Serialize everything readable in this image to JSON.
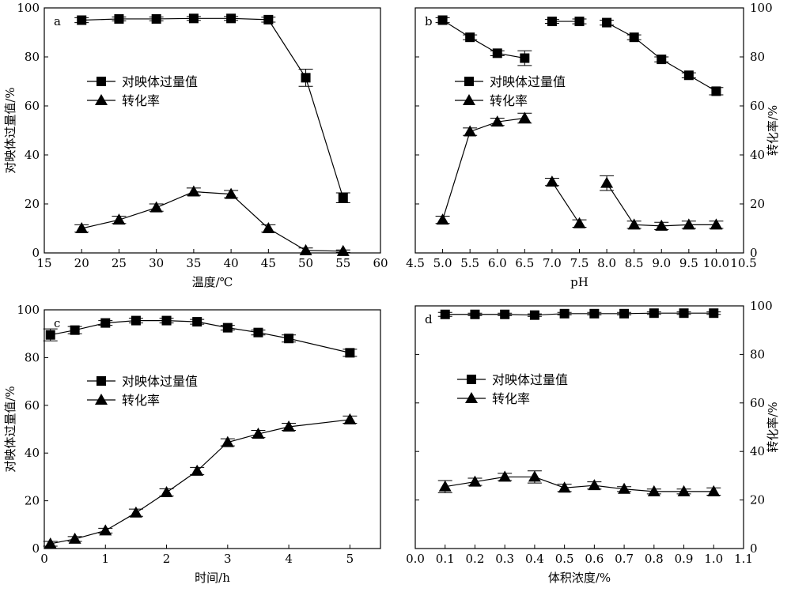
{
  "chart_data": [
    {
      "type": "line",
      "panel_label": "a",
      "xlabel": "温度/℃",
      "ylabel_left": "对映体过量值/%",
      "ylabel_right": "",
      "xlim": [
        15,
        60
      ],
      "ylim": [
        0,
        100
      ],
      "xticks": [
        15,
        20,
        25,
        30,
        35,
        40,
        45,
        50,
        55,
        60
      ],
      "yticks": [
        0,
        20,
        40,
        60,
        80,
        100
      ],
      "show_right_ticks": false,
      "legend": {
        "position": "upper-left",
        "entries": [
          "对映体过量值",
          "转化率"
        ]
      },
      "series": [
        {
          "name": "对映体过量值",
          "marker": "square",
          "segments": [
            [
              {
                "x": 20,
                "y": 95.0,
                "err": 1.0
              },
              {
                "x": 25,
                "y": 95.5,
                "err": 0.8
              },
              {
                "x": 30,
                "y": 95.5,
                "err": 0.8
              },
              {
                "x": 35,
                "y": 95.7,
                "err": 0.8
              },
              {
                "x": 40,
                "y": 95.7,
                "err": 0.8
              },
              {
                "x": 45,
                "y": 95.2,
                "err": 1.0
              },
              {
                "x": 50,
                "y": 71.5,
                "err": 3.5
              },
              {
                "x": 55,
                "y": 22.5,
                "err": 2.0
              }
            ]
          ]
        },
        {
          "name": "转化率",
          "marker": "triangle",
          "segments": [
            [
              {
                "x": 20,
                "y": 10.0,
                "err": 1.5
              },
              {
                "x": 25,
                "y": 13.5,
                "err": 1.5
              },
              {
                "x": 30,
                "y": 18.5,
                "err": 1.5
              },
              {
                "x": 35,
                "y": 25.0,
                "err": 1.5
              },
              {
                "x": 40,
                "y": 24.0,
                "err": 1.5
              },
              {
                "x": 45,
                "y": 10.0,
                "err": 1.5
              },
              {
                "x": 50,
                "y": 1.0,
                "err": 1.0
              },
              {
                "x": 55,
                "y": 0.7,
                "err": 0.5
              }
            ]
          ]
        }
      ]
    },
    {
      "type": "line",
      "panel_label": "b",
      "xlabel": "pH",
      "ylabel_left": "",
      "ylabel_right": "转化率/%",
      "xlim": [
        4.5,
        10.5
      ],
      "ylim": [
        0,
        100
      ],
      "xticks": [
        4.5,
        5.0,
        5.5,
        6.0,
        6.5,
        7.0,
        7.5,
        8.0,
        8.5,
        9.0,
        9.5,
        10.0,
        10.5
      ],
      "yticks": [
        0,
        20,
        40,
        60,
        80,
        100
      ],
      "show_right_ticks": true,
      "legend": {
        "position": "upper-center",
        "entries": [
          "对映体过量值",
          "转化率"
        ]
      },
      "series": [
        {
          "name": "对映体过量值",
          "marker": "square",
          "segments": [
            [
              {
                "x": 5.0,
                "y": 95.0,
                "err": 1.0
              },
              {
                "x": 5.5,
                "y": 88.0,
                "err": 1.0
              },
              {
                "x": 6.0,
                "y": 81.5,
                "err": 1.0
              },
              {
                "x": 6.5,
                "y": 79.5,
                "err": 3.0
              }
            ],
            [
              {
                "x": 7.0,
                "y": 94.5,
                "err": 0.8
              },
              {
                "x": 7.5,
                "y": 94.5,
                "err": 1.0
              }
            ],
            [
              {
                "x": 8.0,
                "y": 94.0,
                "err": 1.0
              },
              {
                "x": 8.5,
                "y": 88.0,
                "err": 1.0
              },
              {
                "x": 9.0,
                "y": 79.0,
                "err": 1.0
              },
              {
                "x": 9.5,
                "y": 72.5,
                "err": 1.0
              },
              {
                "x": 10.0,
                "y": 66.0,
                "err": 1.5
              }
            ]
          ]
        },
        {
          "name": "转化率",
          "marker": "triangle",
          "segments": [
            [
              {
                "x": 5.0,
                "y": 13.5,
                "err": 1.5
              },
              {
                "x": 5.5,
                "y": 49.5,
                "err": 1.5
              },
              {
                "x": 6.0,
                "y": 53.5,
                "err": 1.5
              },
              {
                "x": 6.5,
                "y": 55.0,
                "err": 2.0
              }
            ],
            [
              {
                "x": 7.0,
                "y": 29.0,
                "err": 1.5
              },
              {
                "x": 7.5,
                "y": 12.0,
                "err": 1.5
              }
            ],
            [
              {
                "x": 8.0,
                "y": 28.5,
                "err": 3.0
              },
              {
                "x": 8.5,
                "y": 11.5,
                "err": 1.5
              },
              {
                "x": 9.0,
                "y": 11.0,
                "err": 1.5
              },
              {
                "x": 9.5,
                "y": 11.5,
                "err": 1.5
              },
              {
                "x": 10.0,
                "y": 11.5,
                "err": 1.5
              }
            ]
          ]
        }
      ]
    },
    {
      "type": "line",
      "panel_label": "c",
      "xlabel": "时间/h",
      "ylabel_left": "对映体过量值/%",
      "ylabel_right": "",
      "xlim": [
        0,
        5.5
      ],
      "ylim": [
        0,
        100
      ],
      "xticks": [
        0,
        1,
        2,
        3,
        4,
        5
      ],
      "yticks": [
        0,
        20,
        40,
        60,
        80,
        100
      ],
      "show_right_ticks": false,
      "legend": {
        "position": "middle-left",
        "entries": [
          "对映体过量值",
          "转化率"
        ]
      },
      "series": [
        {
          "name": "对映体过量值",
          "marker": "square",
          "segments": [
            [
              {
                "x": 0.1,
                "y": 89.5,
                "err": 2.5
              },
              {
                "x": 0.5,
                "y": 91.5,
                "err": 1.5
              },
              {
                "x": 1.0,
                "y": 94.5,
                "err": 1.0
              },
              {
                "x": 1.5,
                "y": 95.5,
                "err": 1.0
              },
              {
                "x": 2.0,
                "y": 95.5,
                "err": 1.0
              },
              {
                "x": 2.5,
                "y": 95.0,
                "err": 1.0
              },
              {
                "x": 3.0,
                "y": 92.5,
                "err": 1.0
              },
              {
                "x": 3.5,
                "y": 90.5,
                "err": 1.0
              },
              {
                "x": 4.0,
                "y": 88.0,
                "err": 1.5
              },
              {
                "x": 5.0,
                "y": 82.0,
                "err": 1.5
              }
            ]
          ]
        },
        {
          "name": "转化率",
          "marker": "triangle",
          "segments": [
            [
              {
                "x": 0.1,
                "y": 2.0,
                "err": 1.0
              },
              {
                "x": 0.5,
                "y": 4.0,
                "err": 1.0
              },
              {
                "x": 1.0,
                "y": 7.5,
                "err": 1.0
              },
              {
                "x": 1.5,
                "y": 15.0,
                "err": 1.5
              },
              {
                "x": 2.0,
                "y": 23.5,
                "err": 1.5
              },
              {
                "x": 2.5,
                "y": 32.5,
                "err": 1.5
              },
              {
                "x": 3.0,
                "y": 44.5,
                "err": 1.5
              },
              {
                "x": 3.5,
                "y": 48.0,
                "err": 1.5
              },
              {
                "x": 4.0,
                "y": 51.0,
                "err": 1.5
              },
              {
                "x": 5.0,
                "y": 54.0,
                "err": 1.5
              }
            ]
          ]
        }
      ]
    },
    {
      "type": "line",
      "panel_label": "d",
      "xlabel": "体积浓度/%",
      "ylabel_left": "",
      "ylabel_right": "转化率/%",
      "xlim": [
        0.0,
        1.1
      ],
      "ylim": [
        0,
        100
      ],
      "xticks": [
        0.0,
        0.1,
        0.2,
        0.3,
        0.4,
        0.5,
        0.6,
        0.7,
        0.8,
        0.9,
        1.0,
        1.1
      ],
      "yticks": [
        0,
        20,
        40,
        60,
        80,
        100
      ],
      "show_right_ticks": true,
      "legend": {
        "position": "middle-center",
        "entries": [
          "对映体过量值",
          "转化率"
        ]
      },
      "series": [
        {
          "name": "对映体过量值",
          "marker": "square",
          "segments": [
            [
              {
                "x": 0.1,
                "y": 96.5,
                "err": 0.8
              },
              {
                "x": 0.2,
                "y": 96.5,
                "err": 0.5
              },
              {
                "x": 0.3,
                "y": 96.5,
                "err": 0.5
              },
              {
                "x": 0.4,
                "y": 96.2,
                "err": 0.5
              },
              {
                "x": 0.5,
                "y": 96.8,
                "err": 0.5
              },
              {
                "x": 0.6,
                "y": 96.8,
                "err": 0.5
              },
              {
                "x": 0.7,
                "y": 96.8,
                "err": 0.5
              },
              {
                "x": 0.8,
                "y": 97.0,
                "err": 0.5
              },
              {
                "x": 0.9,
                "y": 97.0,
                "err": 0.5
              },
              {
                "x": 1.0,
                "y": 97.0,
                "err": 0.5
              }
            ]
          ]
        },
        {
          "name": "转化率",
          "marker": "triangle",
          "segments": [
            [
              {
                "x": 0.1,
                "y": 25.5,
                "err": 2.5
              },
              {
                "x": 0.2,
                "y": 27.5,
                "err": 1.5
              },
              {
                "x": 0.3,
                "y": 29.5,
                "err": 1.5
              },
              {
                "x": 0.4,
                "y": 29.5,
                "err": 2.5
              },
              {
                "x": 0.5,
                "y": 25.0,
                "err": 1.5
              },
              {
                "x": 0.6,
                "y": 26.0,
                "err": 1.5
              },
              {
                "x": 0.7,
                "y": 24.5,
                "err": 1.0
              },
              {
                "x": 0.8,
                "y": 23.5,
                "err": 1.0
              },
              {
                "x": 0.9,
                "y": 23.5,
                "err": 1.0
              },
              {
                "x": 1.0,
                "y": 23.5,
                "err": 1.5
              }
            ]
          ]
        }
      ]
    }
  ]
}
